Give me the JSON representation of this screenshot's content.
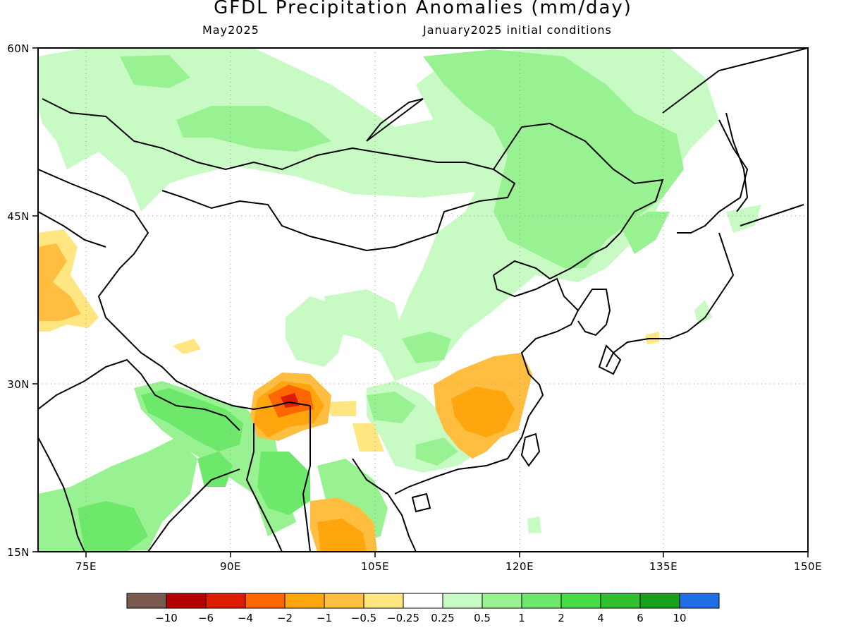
{
  "title": "GFDL Precipitation Anomalies (mm/day)",
  "subtitle_left": "May2025",
  "subtitle_right": "January2025 initial conditions",
  "map": {
    "lon_range": [
      70,
      150
    ],
    "lat_range": [
      15,
      60
    ],
    "lat_ticks": [
      "60N",
      "45N",
      "30N",
      "15N"
    ],
    "lon_ticks": [
      "75E",
      "90E",
      "105E",
      "120E",
      "135E",
      "150E"
    ],
    "gridlines": "dotted",
    "anomaly_regions": [
      {
        "name": "central-asia-north-wet",
        "category": "0.25-0.5"
      },
      {
        "name": "mongolia-wet",
        "category": "0.25-0.5"
      },
      {
        "name": "northeast-china-wet",
        "category": "0.5-1"
      },
      {
        "name": "siberia-wet",
        "category": "0.5-1"
      },
      {
        "name": "tibet-wet-patch",
        "category": "0.25-0.5"
      },
      {
        "name": "central-china-wet",
        "category": "0.25-0.5"
      },
      {
        "name": "south-china-wet",
        "category": "0.25-0.5"
      },
      {
        "name": "himalaya-wet",
        "category": "1-2"
      },
      {
        "name": "myanmar-wet",
        "category": "1-2"
      },
      {
        "name": "india-wet",
        "category": "0.5-1"
      },
      {
        "name": "korea-wet",
        "category": "0.25-0.5"
      },
      {
        "name": "japan-wet",
        "category": "0.25-0.5"
      },
      {
        "name": "kyrgyzstan-dry",
        "category": "-1 to -0.5"
      },
      {
        "name": "yunnan-tibet-dry",
        "category": "-2 to -1"
      },
      {
        "name": "yunnan-dry-core",
        "category": "-6 to -2"
      },
      {
        "name": "jiangxi-dry",
        "category": "-2 to -1"
      },
      {
        "name": "thailand-dry",
        "category": "-2 to -1"
      }
    ]
  },
  "colorbar": {
    "colors": [
      "#7a5a4e",
      "#b30000",
      "#dd1d00",
      "#ff6600",
      "#ffa50d",
      "#ffbe40",
      "#ffe680",
      "#ffffff",
      "#c8fac4",
      "#98f292",
      "#6ee86a",
      "#46dc46",
      "#30c030",
      "#18a018",
      "#1f6ee6"
    ],
    "labels": [
      "-10",
      "-6",
      "-4",
      "-2",
      "-1",
      "-0.5",
      "-0.25",
      "0.25",
      "0.5",
      "1",
      "2",
      "4",
      "6",
      "10"
    ]
  }
}
